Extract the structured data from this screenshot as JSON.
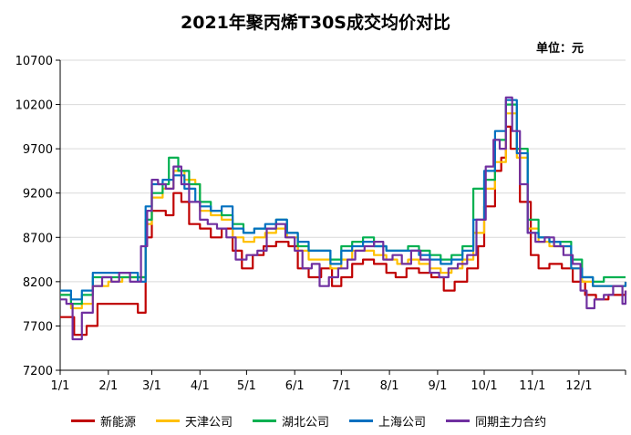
{
  "chart_data": {
    "type": "line",
    "title": "2021年聚丙烯T30S成交均价对比",
    "unit_label": "单位：元",
    "xlabel": "",
    "ylabel": "",
    "ylim": [
      7200,
      10700
    ],
    "yticks": [
      7200,
      7700,
      8200,
      8700,
      9200,
      9700,
      10200,
      10700
    ],
    "x_tick_labels": [
      "1/1",
      "2/1",
      "3/1",
      "4/1",
      "5/1",
      "6/1",
      "7/1",
      "8/1",
      "9/1",
      "10/1",
      "11/1",
      "12/1"
    ],
    "grid": "horizontal",
    "legend_position": "bottom",
    "series": [
      {
        "name": "新能源",
        "color": "#c00000",
        "points": [
          [
            "1/1",
            7800
          ],
          [
            "1/8",
            7800
          ],
          [
            "1/10",
            7600
          ],
          [
            "1/18",
            7700
          ],
          [
            "1/25",
            7950
          ],
          [
            "2/1",
            7950
          ],
          [
            "2/10",
            7950
          ],
          [
            "2/15",
            7950
          ],
          [
            "2/20",
            7850
          ],
          [
            "2/25",
            8700
          ],
          [
            "3/1",
            9000
          ],
          [
            "3/5",
            9000
          ],
          [
            "3/10",
            8950
          ],
          [
            "3/15",
            9200
          ],
          [
            "3/20",
            9100
          ],
          [
            "3/25",
            8850
          ],
          [
            "4/1",
            8800
          ],
          [
            "4/8",
            8700
          ],
          [
            "4/15",
            8800
          ],
          [
            "4/22",
            8550
          ],
          [
            "4/28",
            8350
          ],
          [
            "5/5",
            8500
          ],
          [
            "5/12",
            8600
          ],
          [
            "5/20",
            8650
          ],
          [
            "5/28",
            8600
          ],
          [
            "6/3",
            8350
          ],
          [
            "6/10",
            8250
          ],
          [
            "6/18",
            8350
          ],
          [
            "6/25",
            8150
          ],
          [
            "7/1",
            8250
          ],
          [
            "7/8",
            8400
          ],
          [
            "7/15",
            8450
          ],
          [
            "7/22",
            8400
          ],
          [
            "7/30",
            8300
          ],
          [
            "8/5",
            8250
          ],
          [
            "8/12",
            8350
          ],
          [
            "8/20",
            8300
          ],
          [
            "8/28",
            8250
          ],
          [
            "9/5",
            8100
          ],
          [
            "9/12",
            8200
          ],
          [
            "9/20",
            8350
          ],
          [
            "9/27",
            8600
          ],
          [
            "10/1",
            9050
          ],
          [
            "10/8",
            9450
          ],
          [
            "10/12",
            9600
          ],
          [
            "10/15",
            9950
          ],
          [
            "10/18",
            9700
          ],
          [
            "10/24",
            9100
          ],
          [
            "10/31",
            8500
          ],
          [
            "11/5",
            8350
          ],
          [
            "11/12",
            8400
          ],
          [
            "11/20",
            8350
          ],
          [
            "11/27",
            8200
          ],
          [
            "12/5",
            8050
          ],
          [
            "12/12",
            8000
          ],
          [
            "12/20",
            8050
          ],
          [
            "12/31",
            8100
          ]
        ]
      },
      {
        "name": "天津公司",
        "color": "#ffc000",
        "points": [
          [
            "1/1",
            8050
          ],
          [
            "1/8",
            7900
          ],
          [
            "1/15",
            7950
          ],
          [
            "1/22",
            8150
          ],
          [
            "2/1",
            8200
          ],
          [
            "2/10",
            8250
          ],
          [
            "2/20",
            8250
          ],
          [
            "2/25",
            8850
          ],
          [
            "3/1",
            9150
          ],
          [
            "3/8",
            9250
          ],
          [
            "3/15",
            9450
          ],
          [
            "3/22",
            9350
          ],
          [
            "3/29",
            9300
          ],
          [
            "4/1",
            9000
          ],
          [
            "4/8",
            8950
          ],
          [
            "4/15",
            8900
          ],
          [
            "4/22",
            8700
          ],
          [
            "4/29",
            8650
          ],
          [
            "5/6",
            8700
          ],
          [
            "5/13",
            8750
          ],
          [
            "5/20",
            8800
          ],
          [
            "5/27",
            8700
          ],
          [
            "6/3",
            8550
          ],
          [
            "6/10",
            8450
          ],
          [
            "6/17",
            8450
          ],
          [
            "6/24",
            8350
          ],
          [
            "7/1",
            8450
          ],
          [
            "7/8",
            8550
          ],
          [
            "7/15",
            8550
          ],
          [
            "7/22",
            8500
          ],
          [
            "7/30",
            8450
          ],
          [
            "8/6",
            8400
          ],
          [
            "8/13",
            8450
          ],
          [
            "8/20",
            8400
          ],
          [
            "8/27",
            8350
          ],
          [
            "9/3",
            8300
          ],
          [
            "9/10",
            8350
          ],
          [
            "9/17",
            8450
          ],
          [
            "9/24",
            8750
          ],
          [
            "10/1",
            9250
          ],
          [
            "10/8",
            9550
          ],
          [
            "10/15",
            10100
          ],
          [
            "10/22",
            9600
          ],
          [
            "10/29",
            8800
          ],
          [
            "11/5",
            8650
          ],
          [
            "11/12",
            8600
          ],
          [
            "11/19",
            8600
          ],
          [
            "11/26",
            8350
          ],
          [
            "12/3",
            8200
          ],
          [
            "12/10",
            8150
          ],
          [
            "12/17",
            8150
          ],
          [
            "12/31",
            8200
          ]
        ]
      },
      {
        "name": "湖北公司",
        "color": "#00b050",
        "points": [
          [
            "1/1",
            8050
          ],
          [
            "1/8",
            7950
          ],
          [
            "1/15",
            8050
          ],
          [
            "1/22",
            8250
          ],
          [
            "2/1",
            8250
          ],
          [
            "2/10",
            8250
          ],
          [
            "2/20",
            8250
          ],
          [
            "2/25",
            8900
          ],
          [
            "3/1",
            9200
          ],
          [
            "3/8",
            9300
          ],
          [
            "3/12",
            9600
          ],
          [
            "3/18",
            9450
          ],
          [
            "3/25",
            9300
          ],
          [
            "4/1",
            9100
          ],
          [
            "4/8",
            9000
          ],
          [
            "4/15",
            8950
          ],
          [
            "4/22",
            8850
          ],
          [
            "4/29",
            8750
          ],
          [
            "5/6",
            8800
          ],
          [
            "5/13",
            8800
          ],
          [
            "5/20",
            8900
          ],
          [
            "5/27",
            8750
          ],
          [
            "6/3",
            8600
          ],
          [
            "6/10",
            8550
          ],
          [
            "6/17",
            8550
          ],
          [
            "6/24",
            8450
          ],
          [
            "7/1",
            8600
          ],
          [
            "7/8",
            8650
          ],
          [
            "7/15",
            8700
          ],
          [
            "7/22",
            8600
          ],
          [
            "7/30",
            8550
          ],
          [
            "8/6",
            8550
          ],
          [
            "8/13",
            8600
          ],
          [
            "8/20",
            8550
          ],
          [
            "8/27",
            8500
          ],
          [
            "9/3",
            8450
          ],
          [
            "9/10",
            8500
          ],
          [
            "9/17",
            8600
          ],
          [
            "9/24",
            9250
          ],
          [
            "10/1",
            9350
          ],
          [
            "10/8",
            9800
          ],
          [
            "10/15",
            10200
          ],
          [
            "10/22",
            9700
          ],
          [
            "10/29",
            8900
          ],
          [
            "11/5",
            8700
          ],
          [
            "11/12",
            8650
          ],
          [
            "11/19",
            8650
          ],
          [
            "11/26",
            8450
          ],
          [
            "12/3",
            8250
          ],
          [
            "12/10",
            8200
          ],
          [
            "12/17",
            8250
          ],
          [
            "12/31",
            8250
          ]
        ]
      },
      {
        "name": "上海公司",
        "color": "#0070c0",
        "points": [
          [
            "1/1",
            8100
          ],
          [
            "1/8",
            8000
          ],
          [
            "1/15",
            8100
          ],
          [
            "1/22",
            8300
          ],
          [
            "2/1",
            8300
          ],
          [
            "2/10",
            8300
          ],
          [
            "2/20",
            8200
          ],
          [
            "2/25",
            9050
          ],
          [
            "3/1",
            9300
          ],
          [
            "3/8",
            9350
          ],
          [
            "3/15",
            9400
          ],
          [
            "3/22",
            9250
          ],
          [
            "3/29",
            9100
          ],
          [
            "4/1",
            9050
          ],
          [
            "4/8",
            9000
          ],
          [
            "4/15",
            9050
          ],
          [
            "4/22",
            8800
          ],
          [
            "4/29",
            8750
          ],
          [
            "5/6",
            8800
          ],
          [
            "5/13",
            8850
          ],
          [
            "5/20",
            8900
          ],
          [
            "5/27",
            8750
          ],
          [
            "6/3",
            8650
          ],
          [
            "6/10",
            8550
          ],
          [
            "6/17",
            8550
          ],
          [
            "6/24",
            8400
          ],
          [
            "7/1",
            8550
          ],
          [
            "7/8",
            8600
          ],
          [
            "7/15",
            8650
          ],
          [
            "7/22",
            8600
          ],
          [
            "7/30",
            8550
          ],
          [
            "8/6",
            8550
          ],
          [
            "8/13",
            8550
          ],
          [
            "8/20",
            8500
          ],
          [
            "8/27",
            8450
          ],
          [
            "9/3",
            8400
          ],
          [
            "9/10",
            8450
          ],
          [
            "9/17",
            8550
          ],
          [
            "9/24",
            8900
          ],
          [
            "10/1",
            9450
          ],
          [
            "10/8",
            9900
          ],
          [
            "10/15",
            10250
          ],
          [
            "10/22",
            9650
          ],
          [
            "10/29",
            8750
          ],
          [
            "11/5",
            8700
          ],
          [
            "11/12",
            8650
          ],
          [
            "11/19",
            8600
          ],
          [
            "11/26",
            8350
          ],
          [
            "12/3",
            8250
          ],
          [
            "12/10",
            8150
          ],
          [
            "12/17",
            8150
          ],
          [
            "12/31",
            8200
          ]
        ]
      },
      {
        "name": "同期主力合约",
        "color": "#7030a0",
        "points": [
          [
            "1/1",
            8000
          ],
          [
            "1/5",
            7950
          ],
          [
            "1/9",
            7550
          ],
          [
            "1/15",
            7850
          ],
          [
            "1/22",
            8150
          ],
          [
            "1/28",
            8250
          ],
          [
            "2/3",
            8200
          ],
          [
            "2/8",
            8300
          ],
          [
            "2/15",
            8200
          ],
          [
            "2/22",
            8600
          ],
          [
            "2/26",
            9000
          ],
          [
            "3/1",
            9350
          ],
          [
            "3/5",
            9300
          ],
          [
            "3/10",
            9250
          ],
          [
            "3/15",
            9500
          ],
          [
            "3/20",
            9300
          ],
          [
            "3/25",
            9100
          ],
          [
            "4/1",
            8900
          ],
          [
            "4/6",
            8850
          ],
          [
            "4/12",
            8800
          ],
          [
            "4/18",
            8700
          ],
          [
            "4/24",
            8450
          ],
          [
            "5/1",
            8500
          ],
          [
            "5/8",
            8550
          ],
          [
            "5/14",
            8800
          ],
          [
            "5/20",
            8850
          ],
          [
            "5/26",
            8700
          ],
          [
            "6/1",
            8550
          ],
          [
            "6/6",
            8350
          ],
          [
            "6/12",
            8400
          ],
          [
            "6/17",
            8150
          ],
          [
            "6/23",
            8250
          ],
          [
            "6/29",
            8350
          ],
          [
            "7/5",
            8450
          ],
          [
            "7/10",
            8550
          ],
          [
            "7/16",
            8600
          ],
          [
            "7/22",
            8650
          ],
          [
            "7/28",
            8450
          ],
          [
            "8/3",
            8500
          ],
          [
            "8/9",
            8400
          ],
          [
            "8/15",
            8550
          ],
          [
            "8/21",
            8450
          ],
          [
            "8/27",
            8300
          ],
          [
            "9/2",
            8250
          ],
          [
            "9/8",
            8350
          ],
          [
            "9/14",
            8400
          ],
          [
            "9/20",
            8500
          ],
          [
            "9/26",
            8900
          ],
          [
            "10/2",
            9500
          ],
          [
            "10/7",
            9800
          ],
          [
            "10/11",
            9700
          ],
          [
            "10/15",
            10280
          ],
          [
            "10/19",
            9900
          ],
          [
            "10/24",
            9300
          ],
          [
            "10/29",
            8750
          ],
          [
            "11/3",
            8650
          ],
          [
            "11/9",
            8700
          ],
          [
            "11/15",
            8600
          ],
          [
            "11/21",
            8500
          ],
          [
            "11/27",
            8400
          ],
          [
            "12/2",
            8100
          ],
          [
            "12/6",
            7900
          ],
          [
            "12/11",
            8000
          ],
          [
            "12/17",
            8050
          ],
          [
            "12/23",
            8150
          ],
          [
            "12/29",
            7950
          ],
          [
            "12/31",
            8100
          ]
        ]
      }
    ]
  }
}
